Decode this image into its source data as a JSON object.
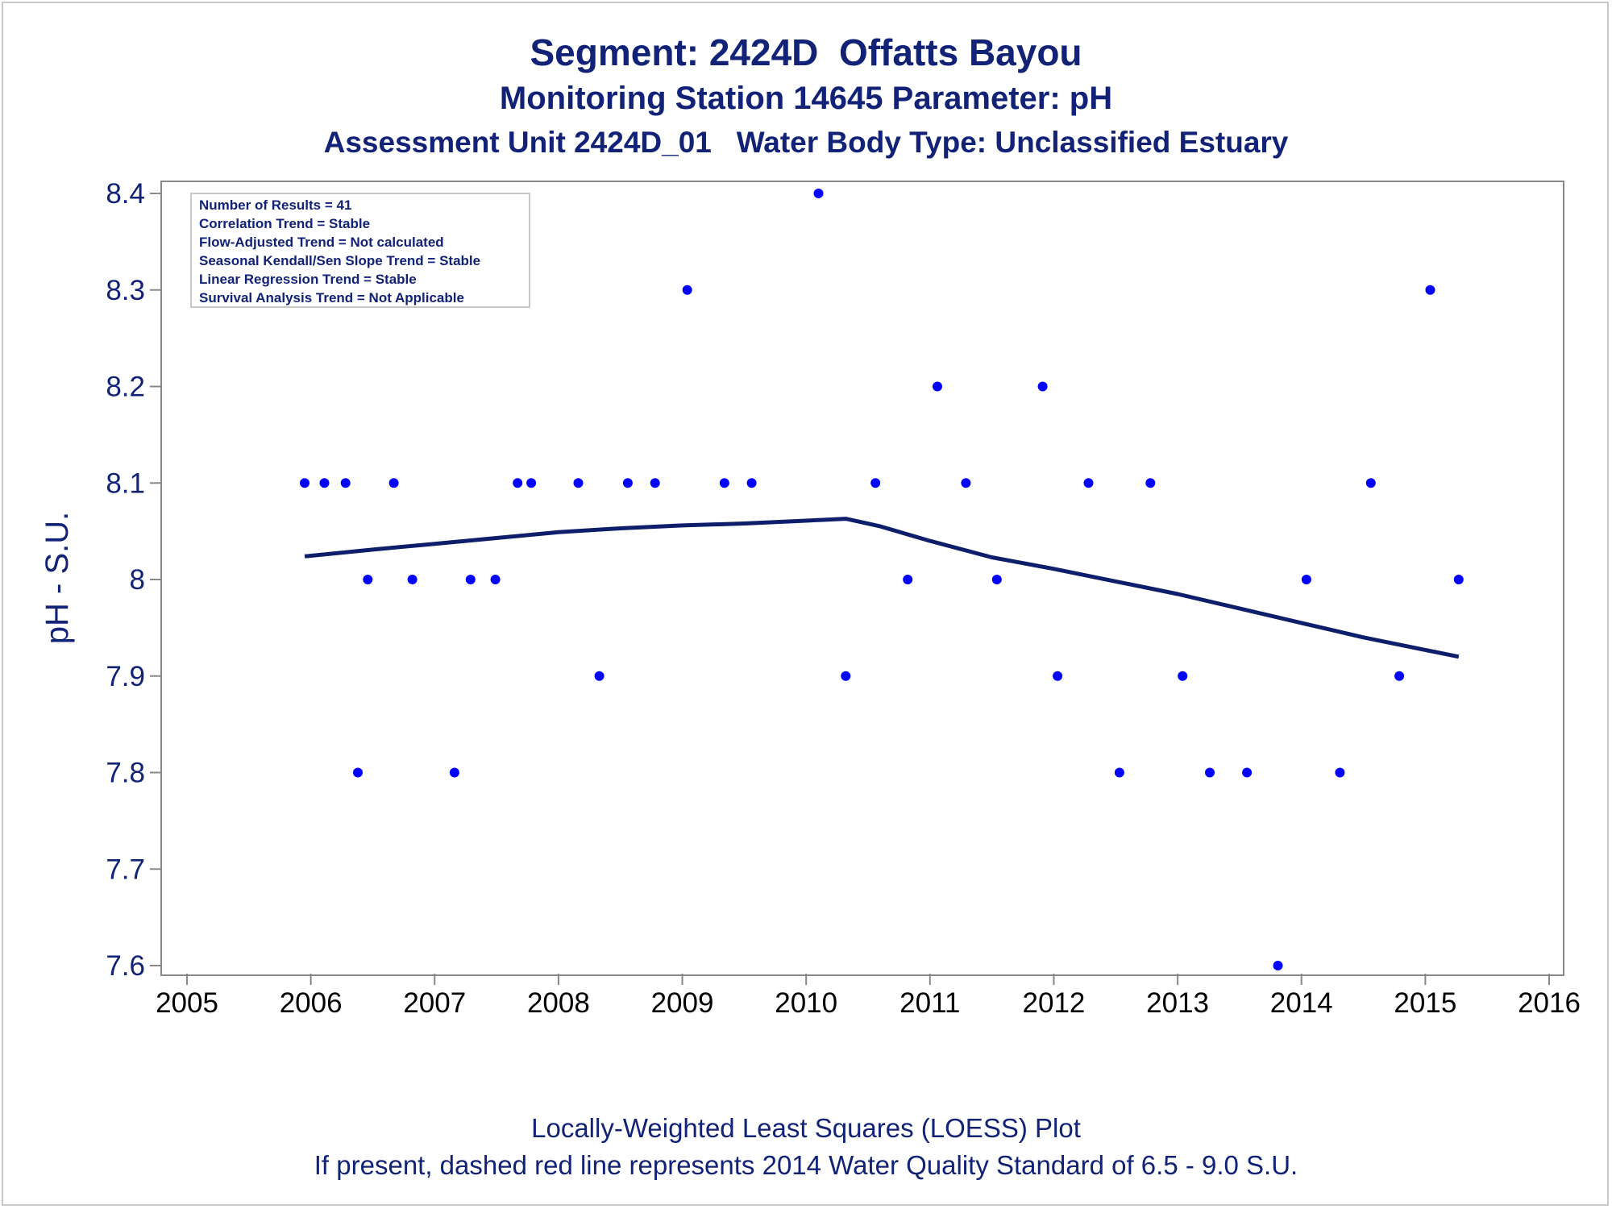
{
  "titles": {
    "line1": "Segment: 2424D  Offatts Bayou",
    "line2": "Monitoring Station 14645 Parameter: pH",
    "line3": "Assessment Unit 2424D_01   Water Body Type: Unclassified Estuary"
  },
  "footnotes": {
    "line1": "Locally-Weighted Least Squares (LOESS) Plot",
    "line2": "If present, dashed red line represents 2014 Water Quality Standard of 6.5 - 9.0 S.U."
  },
  "stats_box": [
    "Number of Results = 41",
    "Correlation Trend = Stable",
    "Flow-Adjusted Trend = Not calculated",
    "Seasonal Kendall/Sen Slope Trend = Stable",
    "Linear Regression Trend = Stable",
    "Survival Analysis Trend = Not Applicable"
  ],
  "colors": {
    "text": "#112277",
    "points": "#0000ff",
    "loess_line": "#0d1f6b",
    "axis": "#888888"
  },
  "chart_data": {
    "type": "scatter",
    "ylabel": "pH - S.U.",
    "xlabel": "",
    "xlim": [
      2005,
      2016
    ],
    "ylim": [
      7.6,
      8.4
    ],
    "x_ticks": [
      2005,
      2006,
      2007,
      2008,
      2009,
      2010,
      2011,
      2012,
      2013,
      2014,
      2015,
      2016
    ],
    "y_ticks": [
      7.6,
      7.7,
      7.8,
      7.9,
      8.0,
      8.1,
      8.2,
      8.3,
      8.4
    ],
    "y_tick_labels": [
      "7.6",
      "7.7",
      "7.8",
      "7.9",
      "8",
      "8.1",
      "8.2",
      "8.3",
      "8.4"
    ],
    "grid": false,
    "series": [
      {
        "type": "scatter",
        "x": [
          2005.95,
          2006.11,
          2006.28,
          2006.38,
          2006.46,
          2006.67,
          2006.82,
          2007.16,
          2007.29,
          2007.49,
          2007.67,
          2007.78,
          2008.16,
          2008.33,
          2008.56,
          2008.78,
          2009.04,
          2009.34,
          2009.56,
          2010.1,
          2010.32,
          2010.56,
          2010.82,
          2011.06,
          2011.29,
          2011.54,
          2011.91,
          2012.03,
          2012.28,
          2012.53,
          2012.78,
          2013.04,
          2013.26,
          2013.56,
          2013.81,
          2014.04,
          2014.31,
          2014.56,
          2014.79,
          2015.04,
          2015.27
        ],
        "y": [
          8.1,
          8.1,
          8.1,
          7.8,
          8.0,
          8.1,
          8.0,
          7.8,
          8.0,
          8.0,
          8.1,
          8.1,
          8.1,
          7.9,
          8.1,
          8.1,
          8.3,
          8.1,
          8.1,
          8.4,
          7.9,
          8.1,
          8.0,
          8.2,
          8.1,
          8.0,
          8.2,
          7.9,
          8.1,
          7.8,
          8.1,
          7.9,
          7.8,
          7.8,
          7.6,
          8.0,
          7.8,
          8.1,
          7.9,
          8.3,
          8.0
        ]
      },
      {
        "type": "line",
        "x": [
          2005.95,
          2006.5,
          2007.0,
          2007.5,
          2008.0,
          2008.5,
          2009.0,
          2009.5,
          2010.0,
          2010.32,
          2010.6,
          2011.0,
          2011.5,
          2012.0,
          2012.5,
          2013.0,
          2013.5,
          2014.0,
          2014.5,
          2015.0,
          2015.27
        ],
        "y": [
          8.024,
          8.031,
          8.037,
          8.043,
          8.049,
          8.053,
          8.056,
          8.058,
          8.061,
          8.063,
          8.055,
          8.04,
          8.023,
          8.011,
          7.998,
          7.985,
          7.97,
          7.955,
          7.94,
          7.927,
          7.92
        ]
      }
    ]
  }
}
